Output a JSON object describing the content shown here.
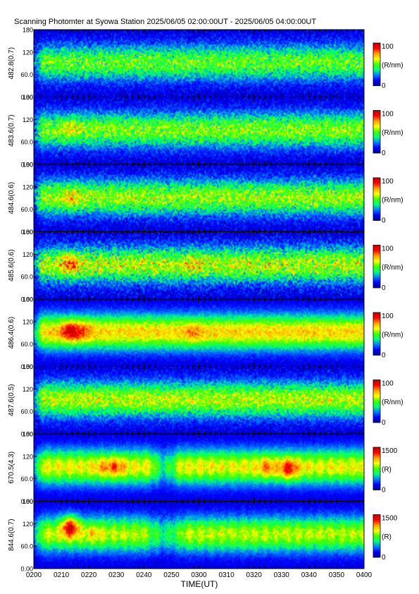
{
  "title": "Scanning Photomter at Syowa Station 2025/06/05 02:00:00UT - 2025/06/05 04:00:00UT",
  "chart_data": {
    "type": "heatmap",
    "xlabel": "TIME(UT)",
    "x_ticks": [
      "0200",
      "0210",
      "0220",
      "0230",
      "0240",
      "0250",
      "0300",
      "0310",
      "0320",
      "0330",
      "0340",
      "0350",
      "0400"
    ],
    "y_ticks": [
      "0.00",
      "60.0",
      "120",
      "180"
    ],
    "ylim": [
      0,
      180
    ],
    "colorscale": [
      "#00008c",
      "#0000ff",
      "#0080ff",
      "#00ff80",
      "#40ff00",
      "#ffff00",
      "#ffa000",
      "#ff0000",
      "#c00000"
    ],
    "panels": [
      {
        "ylabel": "482.8(0.7)",
        "cbar_unit": "(R/nm)",
        "cbar_min": "0",
        "cbar_max": "100",
        "cbar_range": [
          0,
          100
        ],
        "baseline": 0.42,
        "noise": 0.16,
        "blobs": []
      },
      {
        "ylabel": "483.6(0.7)",
        "cbar_unit": "(R/nm)",
        "cbar_min": "0",
        "cbar_max": "100",
        "cbar_range": [
          0,
          100
        ],
        "baseline": 0.45,
        "noise": 0.16,
        "blobs": [
          {
            "time": "0213",
            "angle": 95,
            "strength": 0.12
          }
        ]
      },
      {
        "ylabel": "484.6(0.6)",
        "cbar_unit": "(R/nm)",
        "cbar_min": "0",
        "cbar_max": "100",
        "cbar_range": [
          0,
          100
        ],
        "baseline": 0.47,
        "noise": 0.17,
        "blobs": [
          {
            "time": "0213",
            "angle": 95,
            "strength": 0.15
          }
        ]
      },
      {
        "ylabel": "485.6(0.6)",
        "cbar_unit": "(R/nm)",
        "cbar_min": "0",
        "cbar_max": "100",
        "cbar_range": [
          0,
          100
        ],
        "baseline": 0.5,
        "noise": 0.2,
        "blobs": [
          {
            "time": "0213",
            "angle": 95,
            "strength": 0.25
          },
          {
            "time": "0258",
            "angle": 95,
            "strength": 0.08
          }
        ]
      },
      {
        "ylabel": "486.4(0.6)",
        "cbar_unit": "(R/nm)",
        "cbar_min": "0",
        "cbar_max": "100",
        "cbar_range": [
          0,
          100
        ],
        "baseline": 0.6,
        "noise": 0.09,
        "blobs": [
          {
            "time": "0213",
            "angle": 95,
            "strength": 0.3
          },
          {
            "time": "0218",
            "angle": 95,
            "strength": 0.15
          },
          {
            "time": "0258",
            "angle": 90,
            "strength": 0.1
          }
        ]
      },
      {
        "ylabel": "487.6(0.5)",
        "cbar_unit": "(R/nm)",
        "cbar_min": "0",
        "cbar_max": "100",
        "cbar_range": [
          0,
          100
        ],
        "baseline": 0.5,
        "noise": 0.15,
        "blobs": []
      },
      {
        "ylabel": "670.5(4.3)",
        "cbar_unit": "(R)",
        "cbar_min": "0",
        "cbar_max": "1500",
        "cbar_range": [
          0,
          1500
        ],
        "baseline": 0.55,
        "noise": 0.07,
        "gap": {
          "start": "0242",
          "end": "0253",
          "level": 0.32
        },
        "blobs": [
          {
            "time": "0230",
            "angle": 90,
            "strength": 0.18
          },
          {
            "time": "0325",
            "angle": 90,
            "strength": 0.15
          },
          {
            "time": "0333",
            "angle": 85,
            "strength": 0.28
          },
          {
            "time": "0225",
            "angle": 90,
            "strength": 0.1
          }
        ]
      },
      {
        "ylabel": "844.6(0.7)",
        "cbar_unit": "(R)",
        "cbar_min": "0",
        "cbar_max": "1500",
        "cbar_range": [
          0,
          1500
        ],
        "baseline": 0.5,
        "noise": 0.08,
        "gap": {
          "start": "0240",
          "end": "0255",
          "level": 0.33
        },
        "blobs": [
          {
            "time": "0213",
            "angle": 115,
            "strength": 0.45
          },
          {
            "time": "0222",
            "angle": 95,
            "strength": 0.1
          }
        ]
      }
    ]
  }
}
